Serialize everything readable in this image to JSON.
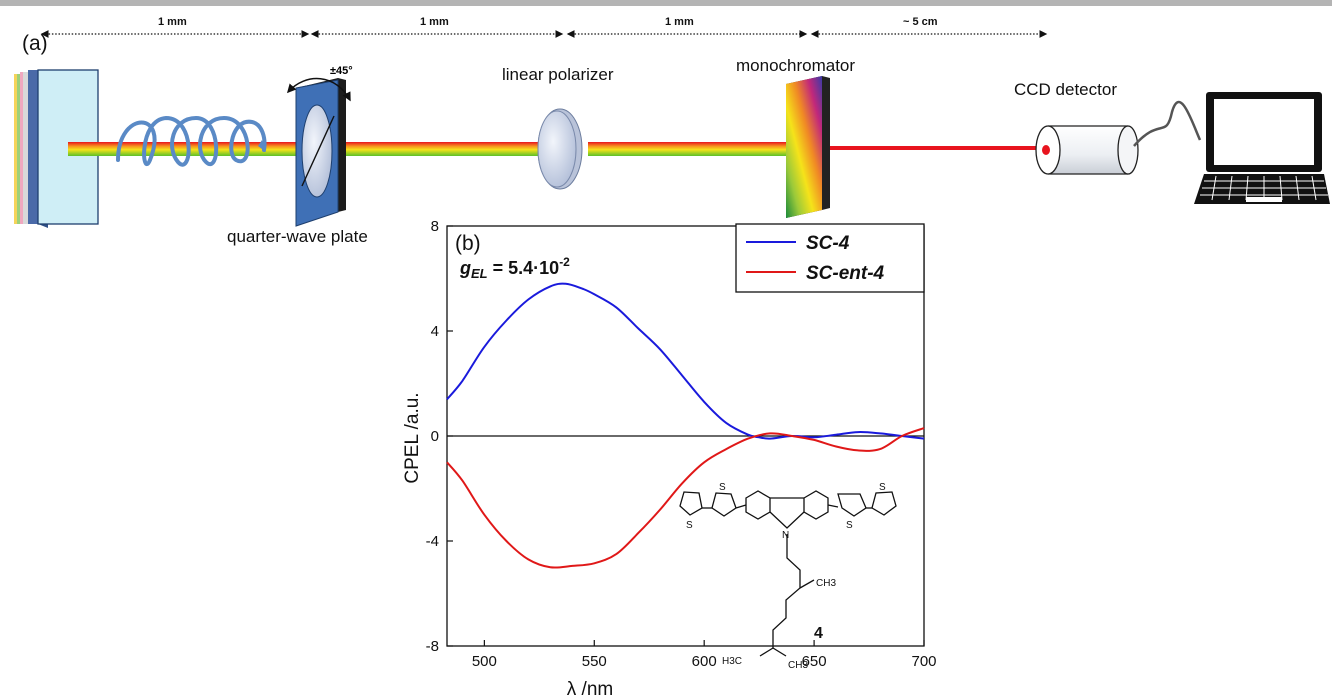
{
  "figure": {
    "panel_a_label": "(a)",
    "panel_b_label": "(b)",
    "distances": [
      "1 mm",
      "1 mm",
      "1 mm",
      "~ 5 cm"
    ],
    "rotation_label": "±45°",
    "components": {
      "waveplate": "quarter-wave plate",
      "polarizer": "linear polarizer",
      "monochromator": "monochromator",
      "detector": "CCD detector"
    },
    "colors": {
      "sc4": "#1a1adc",
      "sc_ent4": "#e01818",
      "laser_red": "#e8141e",
      "plate_blue": "#3d6fb5"
    }
  },
  "annotation": {
    "g_symbol": "g",
    "g_subscript": "EL",
    "g_value": " = 5.4·10",
    "g_exponent": "-2"
  },
  "molecule": {
    "label": "4",
    "N": "N",
    "S": "S",
    "CH3": "CH3",
    "H3C": "H3C"
  },
  "chart_data": {
    "type": "line",
    "xlabel": "λ /nm",
    "ylabel": "CPEL /a.u.",
    "xlim": [
      483,
      700
    ],
    "ylim": [
      -8,
      8
    ],
    "xticks": [
      500,
      550,
      600,
      650,
      700
    ],
    "yticks": [
      8,
      4,
      0,
      -4,
      -8
    ],
    "zero_line": true,
    "grid": false,
    "legend_position": "top-right",
    "series": [
      {
        "name": "SC-4",
        "color": "#1a1adc",
        "x": [
          483,
          490,
          500,
          510,
          520,
          530,
          537,
          545,
          550,
          560,
          570,
          580,
          590,
          600,
          610,
          620,
          625,
          630,
          640,
          650,
          660,
          670,
          680,
          690,
          700
        ],
        "y": [
          1.4,
          2.1,
          3.4,
          4.4,
          5.2,
          5.7,
          5.8,
          5.6,
          5.4,
          4.9,
          4.1,
          3.3,
          2.3,
          1.3,
          0.5,
          0.05,
          -0.05,
          -0.1,
          0.0,
          -0.05,
          0.05,
          0.15,
          0.1,
          0.0,
          -0.1
        ]
      },
      {
        "name": "SC-ent-4",
        "color": "#e01818",
        "x": [
          483,
          490,
          500,
          510,
          520,
          530,
          540,
          550,
          560,
          570,
          580,
          590,
          600,
          610,
          620,
          630,
          640,
          650,
          660,
          670,
          680,
          690,
          700
        ],
        "y": [
          -1.0,
          -1.7,
          -3.0,
          -4.0,
          -4.7,
          -5.0,
          -4.95,
          -4.85,
          -4.5,
          -3.7,
          -2.8,
          -1.8,
          -1.0,
          -0.5,
          -0.1,
          0.1,
          0.0,
          -0.15,
          -0.4,
          -0.55,
          -0.5,
          0.0,
          0.3
        ]
      }
    ]
  }
}
